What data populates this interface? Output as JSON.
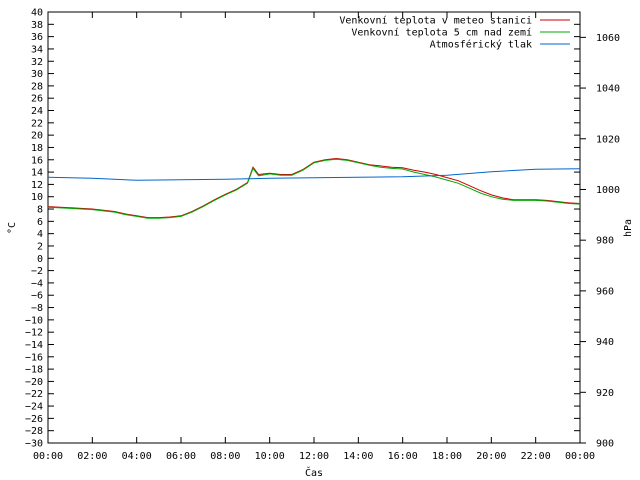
{
  "chart_data": {
    "type": "line",
    "xlabel": "Čas",
    "ylabel": "°C",
    "y2label": "hPa",
    "x_ticks": [
      "00:00",
      "02:00",
      "04:00",
      "06:00",
      "08:00",
      "10:00",
      "12:00",
      "14:00",
      "16:00",
      "18:00",
      "20:00",
      "22:00",
      "00:00"
    ],
    "ylim": [
      -30,
      40
    ],
    "y_ticks": [
      -30,
      -28,
      -26,
      -24,
      -22,
      -20,
      -18,
      -16,
      -14,
      -12,
      -10,
      -8,
      -6,
      -4,
      -2,
      0,
      2,
      4,
      6,
      8,
      10,
      12,
      14,
      16,
      18,
      20,
      22,
      24,
      26,
      28,
      30,
      32,
      34,
      36,
      38,
      40
    ],
    "y2lim": [
      900,
      1070
    ],
    "y2_ticks": [
      900,
      920,
      940,
      960,
      980,
      1000,
      1020,
      1040,
      1060
    ],
    "legend_position": "top-right",
    "grid": false,
    "series": [
      {
        "name": "Venkovní teplota v meteo stanici",
        "color": "#cc0000",
        "axis": "left",
        "points": [
          [
            0,
            8.4
          ],
          [
            1,
            8.2
          ],
          [
            2,
            8.0
          ],
          [
            3,
            7.6
          ],
          [
            3.5,
            7.2
          ],
          [
            4,
            6.9
          ],
          [
            4.5,
            6.6
          ],
          [
            5,
            6.6
          ],
          [
            5.5,
            6.7
          ],
          [
            6,
            6.9
          ],
          [
            6.5,
            7.6
          ],
          [
            7,
            8.5
          ],
          [
            7.5,
            9.5
          ],
          [
            8,
            10.4
          ],
          [
            8.5,
            11.2
          ],
          [
            9,
            12.3
          ],
          [
            9.25,
            14.8
          ],
          [
            9.5,
            13.6
          ],
          [
            10,
            13.8
          ],
          [
            10.5,
            13.6
          ],
          [
            11,
            13.6
          ],
          [
            11.5,
            14.4
          ],
          [
            12,
            15.6
          ],
          [
            12.5,
            16.0
          ],
          [
            13,
            16.2
          ],
          [
            13.5,
            16.0
          ],
          [
            14,
            15.6
          ],
          [
            14.5,
            15.2
          ],
          [
            15,
            15.0
          ],
          [
            15.5,
            14.8
          ],
          [
            16,
            14.7
          ],
          [
            16.5,
            14.3
          ],
          [
            17,
            14.0
          ],
          [
            17.5,
            13.6
          ],
          [
            18,
            13.1
          ],
          [
            18.5,
            12.6
          ],
          [
            19,
            11.8
          ],
          [
            19.5,
            11.0
          ],
          [
            20,
            10.3
          ],
          [
            20.5,
            9.8
          ],
          [
            21,
            9.5
          ],
          [
            21.5,
            9.5
          ],
          [
            22,
            9.5
          ],
          [
            22.5,
            9.4
          ],
          [
            23,
            9.2
          ],
          [
            23.5,
            9.0
          ],
          [
            24,
            8.9
          ]
        ]
      },
      {
        "name": "Venkovní teplota 5 cm nad zemí",
        "color": "#00aa00",
        "axis": "left",
        "points": [
          [
            0,
            8.3
          ],
          [
            1,
            8.1
          ],
          [
            2,
            7.9
          ],
          [
            3,
            7.5
          ],
          [
            3.5,
            7.1
          ],
          [
            4,
            6.8
          ],
          [
            4.5,
            6.5
          ],
          [
            5,
            6.5
          ],
          [
            5.5,
            6.6
          ],
          [
            6,
            6.8
          ],
          [
            6.5,
            7.5
          ],
          [
            7,
            8.4
          ],
          [
            7.5,
            9.4
          ],
          [
            8,
            10.3
          ],
          [
            8.5,
            11.1
          ],
          [
            9,
            12.2
          ],
          [
            9.25,
            14.6
          ],
          [
            9.5,
            13.4
          ],
          [
            10,
            13.7
          ],
          [
            10.5,
            13.5
          ],
          [
            11,
            13.5
          ],
          [
            11.5,
            14.3
          ],
          [
            12,
            15.5
          ],
          [
            12.5,
            15.9
          ],
          [
            13,
            16.1
          ],
          [
            13.5,
            15.9
          ],
          [
            14,
            15.5
          ],
          [
            14.5,
            15.1
          ],
          [
            15,
            14.8
          ],
          [
            15.5,
            14.6
          ],
          [
            16,
            14.5
          ],
          [
            16.5,
            14.0
          ],
          [
            17,
            13.6
          ],
          [
            17.5,
            13.2
          ],
          [
            18,
            12.7
          ],
          [
            18.5,
            12.2
          ],
          [
            19,
            11.4
          ],
          [
            19.5,
            10.6
          ],
          [
            20,
            10.0
          ],
          [
            20.5,
            9.6
          ],
          [
            21,
            9.4
          ],
          [
            21.5,
            9.4
          ],
          [
            22,
            9.4
          ],
          [
            22.5,
            9.3
          ],
          [
            23,
            9.1
          ],
          [
            23.5,
            8.9
          ],
          [
            24,
            8.8
          ]
        ]
      },
      {
        "name": "Atmosférický tlak",
        "color": "#0066cc",
        "axis": "right",
        "points": [
          [
            0,
            1004.8
          ],
          [
            2,
            1004.4
          ],
          [
            4,
            1003.6
          ],
          [
            6,
            1003.8
          ],
          [
            8,
            1004.0
          ],
          [
            10,
            1004.4
          ],
          [
            12,
            1004.6
          ],
          [
            14,
            1004.8
          ],
          [
            16,
            1005.0
          ],
          [
            18,
            1005.6
          ],
          [
            20,
            1007.0
          ],
          [
            22,
            1008.0
          ],
          [
            24,
            1008.2
          ]
        ]
      }
    ]
  }
}
